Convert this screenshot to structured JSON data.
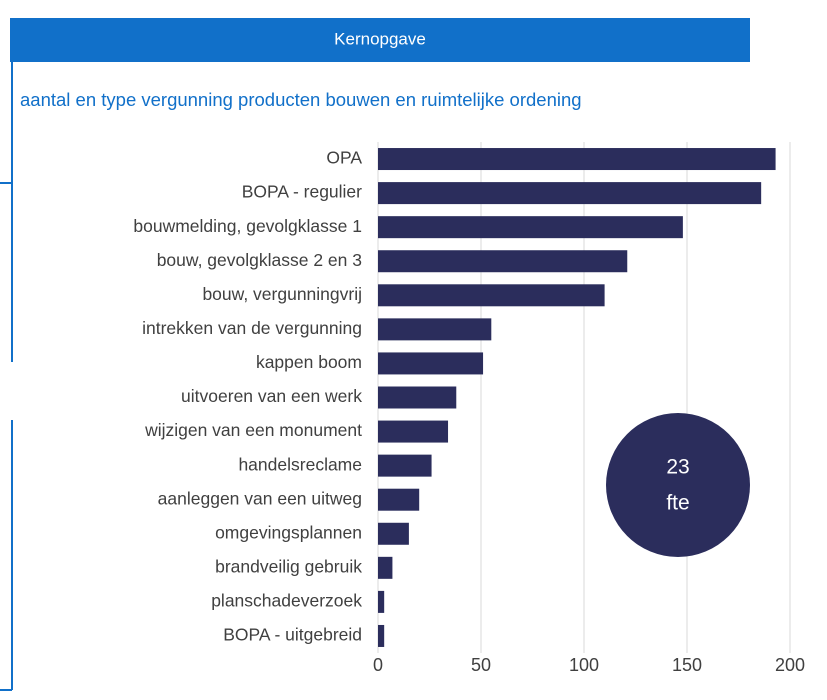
{
  "header": {
    "title": "Kernopgave"
  },
  "chart_data": {
    "type": "hbar",
    "title": "aantal en type vergunning producten bouwen en ruimtelijke ordening",
    "categories": [
      "OPA",
      "BOPA - regulier",
      "bouwmelding, gevolgklasse 1",
      "bouw, gevolgklasse 2 en 3",
      "bouw, vergunningvrij",
      "intrekken van de vergunning",
      "kappen boom",
      "uitvoeren van een werk",
      "wijzigen van een monument",
      "handelsreclame",
      "aanleggen van een uitweg",
      "omgevingsplannen",
      "brandveilig gebruik",
      "planschadeverzoek",
      "BOPA - uitgebreid"
    ],
    "values": [
      193,
      186,
      148,
      121,
      110,
      55,
      51,
      38,
      34,
      26,
      20,
      15,
      7,
      3,
      3
    ],
    "color": "#2b2d5c",
    "xlim": [
      0,
      200
    ],
    "xticks": [
      0,
      50,
      100,
      150,
      200
    ],
    "grid": true,
    "annotation": [
      "23",
      "fte"
    ]
  }
}
